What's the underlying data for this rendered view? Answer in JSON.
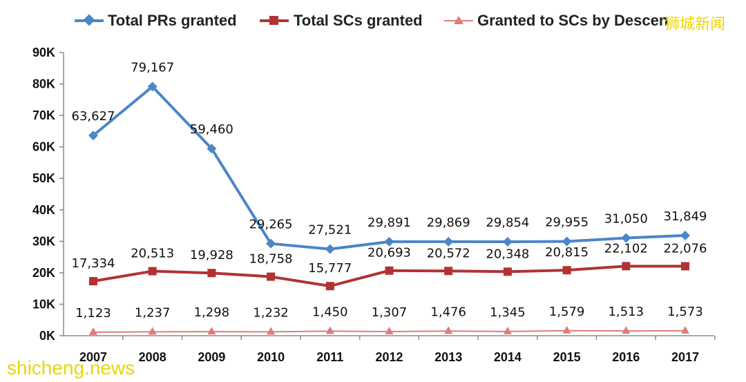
{
  "chart_data": {
    "type": "line",
    "title": "",
    "xlabel": "",
    "ylabel": "",
    "ylim": [
      0,
      90000
    ],
    "y_ticks": [
      "0K",
      "10K",
      "20K",
      "30K",
      "40K",
      "50K",
      "60K",
      "70K",
      "80K",
      "90K"
    ],
    "y_tick_values": [
      0,
      10000,
      20000,
      30000,
      40000,
      50000,
      60000,
      70000,
      80000,
      90000
    ],
    "categories": [
      "2007",
      "2008",
      "2009",
      "2010",
      "2011",
      "2012",
      "2013",
      "2014",
      "2015",
      "2016",
      "2017"
    ],
    "grid": false,
    "legend_position": "top",
    "series": [
      {
        "name": "Total PRs granted",
        "color": "#4a86c8",
        "marker": "diamond",
        "values": [
          63627,
          79167,
          59460,
          29265,
          27521,
          29891,
          29869,
          29854,
          29955,
          31050,
          31849
        ],
        "labels": [
          "63,627",
          "79,167",
          "59,460",
          "29,265",
          "27,521",
          "29,891",
          "29,869",
          "29,854",
          "29,955",
          "31,050",
          "31,849"
        ]
      },
      {
        "name": "Total SCs granted",
        "color": "#b23234",
        "marker": "square",
        "values": [
          17334,
          20513,
          19928,
          18758,
          15777,
          20693,
          20572,
          20348,
          20815,
          22102,
          22076
        ],
        "labels": [
          "17,334",
          "20,513",
          "19,928",
          "18,758",
          "15,777",
          "20,693",
          "20,572",
          "20,348",
          "20,815",
          "22,102",
          "22,076"
        ]
      },
      {
        "name": "Granted to SCs by Descent",
        "color": "#e07b7b",
        "marker": "triangle",
        "values": [
          1123,
          1237,
          1298,
          1232,
          1450,
          1307,
          1476,
          1345,
          1579,
          1513,
          1573
        ],
        "labels": [
          "1,123",
          "1,237",
          "1,298",
          "1,232",
          "1,450",
          "1,307",
          "1,476",
          "1,345",
          "1,579",
          "1,513",
          "1,573"
        ]
      }
    ],
    "legend_labels": [
      "Total PRs granted",
      "Total SCs granted",
      "Granted to SCs by Descen"
    ]
  },
  "watermarks": {
    "chinese": "狮城新闻",
    "site": "shicheng.news"
  }
}
